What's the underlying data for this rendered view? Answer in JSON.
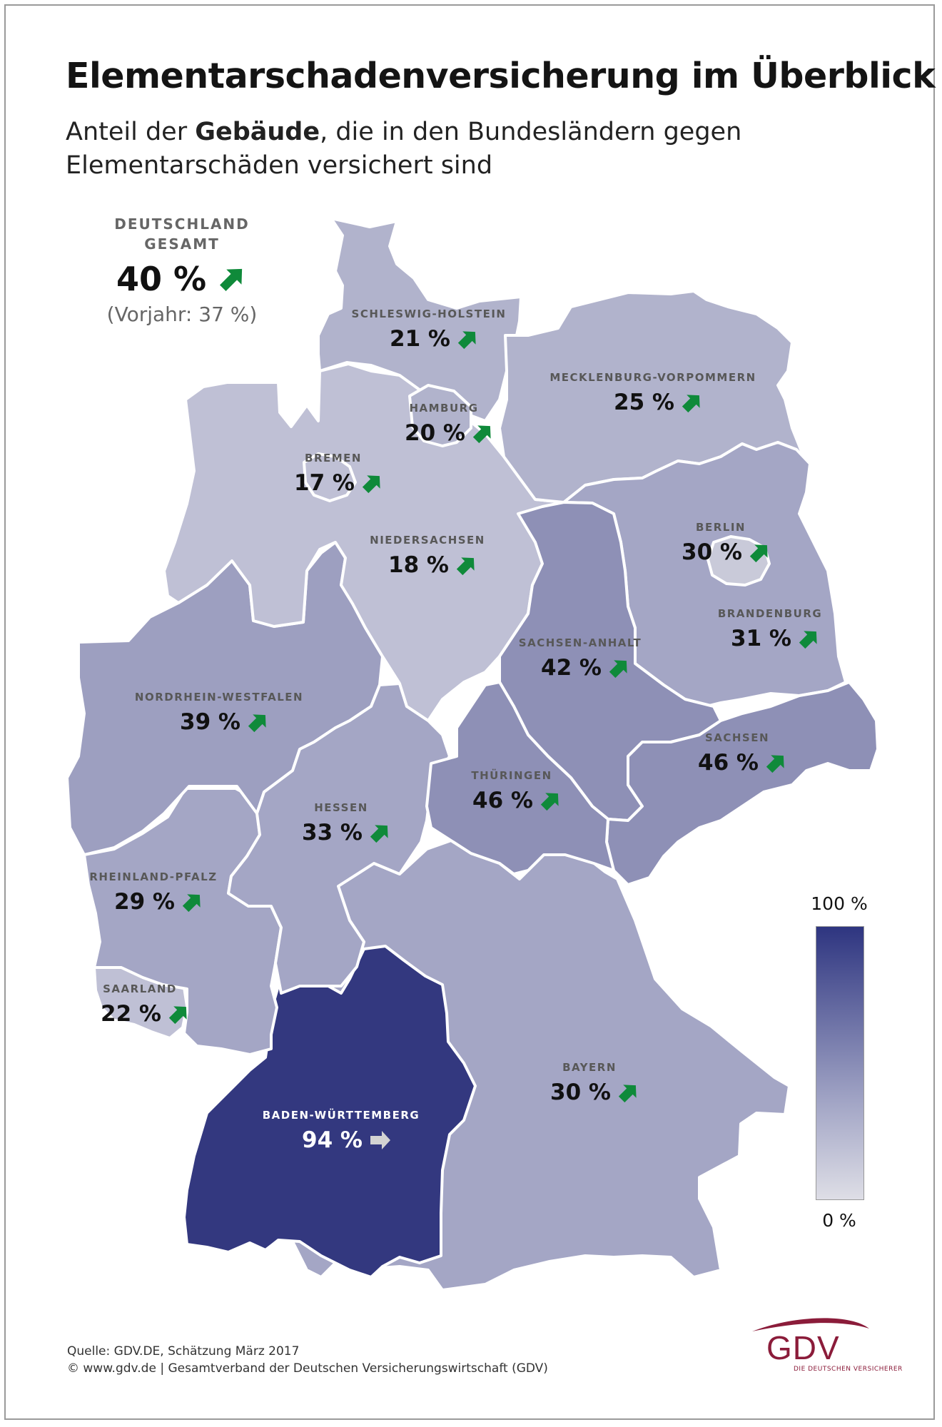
{
  "header": {
    "title": "Elementarschadenversicherung im Überblick",
    "subtitle_pre": "Anteil der ",
    "subtitle_bold": "Gebäude",
    "subtitle_post": ", die in den Bundesländern gegen Elementarschäden versichert sind"
  },
  "total": {
    "label_line1": "DEUTSCHLAND",
    "label_line2": "GESAMT",
    "value": "40 %",
    "trend": "up",
    "previous": "(Vorjahr: 37 %)"
  },
  "colors": {
    "bw": "#33387f",
    "high": "#8e90b6",
    "mid": "#a4a6c5",
    "low": "#bfc0d5",
    "arrow_up": "#0f8a3a",
    "arrow_flat": "#d3d3d3"
  },
  "states": [
    {
      "id": "sh",
      "name": "SCHLESWIG-HOLSTEIN",
      "value": "21 %",
      "pct": 21,
      "trend": "up"
    },
    {
      "id": "mv",
      "name": "MECKLENBURG-VORPOMMERN",
      "value": "25 %",
      "pct": 25,
      "trend": "up"
    },
    {
      "id": "hh",
      "name": "HAMBURG",
      "value": "20 %",
      "pct": 20,
      "trend": "up"
    },
    {
      "id": "hb",
      "name": "BREMEN",
      "value": "17 %",
      "pct": 17,
      "trend": "up"
    },
    {
      "id": "ni",
      "name": "NIEDERSACHSEN",
      "value": "18 %",
      "pct": 18,
      "trend": "up"
    },
    {
      "id": "be",
      "name": "BERLIN",
      "value": "30 %",
      "pct": 30,
      "trend": "up"
    },
    {
      "id": "bb",
      "name": "BRANDENBURG",
      "value": "31 %",
      "pct": 31,
      "trend": "up"
    },
    {
      "id": "st",
      "name": "SACHSEN-ANHALT",
      "value": "42 %",
      "pct": 42,
      "trend": "up"
    },
    {
      "id": "nw",
      "name": "NORDRHEIN-WESTFALEN",
      "value": "39 %",
      "pct": 39,
      "trend": "up"
    },
    {
      "id": "sn",
      "name": "SACHSEN",
      "value": "46 %",
      "pct": 46,
      "trend": "up"
    },
    {
      "id": "th",
      "name": "THÜRINGEN",
      "value": "46 %",
      "pct": 46,
      "trend": "up"
    },
    {
      "id": "he",
      "name": "HESSEN",
      "value": "33 %",
      "pct": 33,
      "trend": "up"
    },
    {
      "id": "rp",
      "name": "RHEINLAND-PFALZ",
      "value": "29 %",
      "pct": 29,
      "trend": "up"
    },
    {
      "id": "sl",
      "name": "SAARLAND",
      "value": "22 %",
      "pct": 22,
      "trend": "up"
    },
    {
      "id": "by",
      "name": "BAYERN",
      "value": "30 %",
      "pct": 30,
      "trend": "up"
    },
    {
      "id": "bw",
      "name": "BADEN-WÜRTTEMBERG",
      "value": "94 %",
      "pct": 94,
      "trend": "flat"
    }
  ],
  "legend": {
    "max_label": "100 %",
    "min_label": "0 %"
  },
  "footer": {
    "source": "Quelle: GDV.DE, Schätzung März 2017",
    "copyright": "© www.gdv.de | Gesamtverband der Deutschen Versicherungswirtschaft (GDV)",
    "logo_text": "GDV",
    "logo_sub": "DIE DEUTSCHEN VERSICHERER"
  }
}
